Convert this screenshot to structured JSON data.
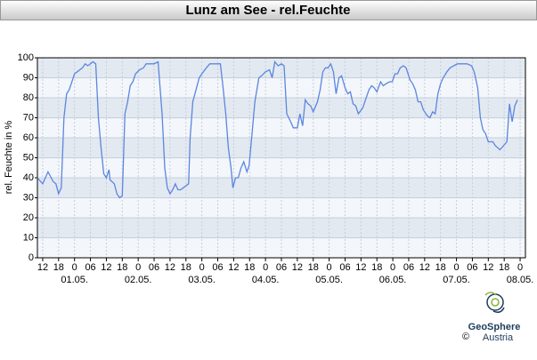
{
  "chart_data": {
    "type": "line",
    "title": "Lunz am See - rel.Feuchte",
    "y_label": "rel. Feuchte in %",
    "logo": {
      "name": "GeoSphere",
      "sub": "Austria",
      "copyright": "©"
    },
    "color": "#5b86e0",
    "grid": true,
    "xlim": [
      -14,
      170
    ],
    "ylim": [
      0,
      100
    ],
    "yticks": [
      0,
      10,
      20,
      30,
      40,
      50,
      60,
      70,
      80,
      90,
      100
    ],
    "xticks": [
      {
        "value": -12,
        "label": "12"
      },
      {
        "value": -6,
        "label": "18"
      },
      {
        "value": 0,
        "label": "0"
      },
      {
        "value": 6,
        "label": "06"
      },
      {
        "value": 12,
        "label": "12"
      },
      {
        "value": 18,
        "label": "18"
      },
      {
        "value": 24,
        "label": "0"
      },
      {
        "value": 30,
        "label": "06"
      },
      {
        "value": 36,
        "label": "12"
      },
      {
        "value": 42,
        "label": "18"
      },
      {
        "value": 48,
        "label": "0"
      },
      {
        "value": 54,
        "label": "06"
      },
      {
        "value": 60,
        "label": "12"
      },
      {
        "value": 66,
        "label": "18"
      },
      {
        "value": 72,
        "label": "0"
      },
      {
        "value": 78,
        "label": "06"
      },
      {
        "value": 84,
        "label": "12"
      },
      {
        "value": 90,
        "label": "18"
      },
      {
        "value": 96,
        "label": "0"
      },
      {
        "value": 102,
        "label": "06"
      },
      {
        "value": 108,
        "label": "12"
      },
      {
        "value": 114,
        "label": "18"
      },
      {
        "value": 120,
        "label": "0"
      },
      {
        "value": 126,
        "label": "06"
      },
      {
        "value": 132,
        "label": "12"
      },
      {
        "value": 138,
        "label": "18"
      },
      {
        "value": 144,
        "label": "0"
      },
      {
        "value": 150,
        "label": "06"
      },
      {
        "value": 156,
        "label": "12"
      },
      {
        "value": 162,
        "label": "18"
      },
      {
        "value": 168,
        "label": "0"
      }
    ],
    "date_ticks": [
      {
        "value": 0,
        "label": "01.05."
      },
      {
        "value": 24,
        "label": "02.05."
      },
      {
        "value": 48,
        "label": "03.05."
      },
      {
        "value": 72,
        "label": "04.05."
      },
      {
        "value": 96,
        "label": "05.05."
      },
      {
        "value": 120,
        "label": "06.05."
      },
      {
        "value": 144,
        "label": "07.05."
      },
      {
        "value": 168,
        "label": "08.05."
      }
    ],
    "x": [
      -14,
      -12,
      -10,
      -8,
      -7,
      -6,
      -5,
      -4,
      -3,
      -2,
      -1,
      0,
      1,
      3,
      4,
      5,
      7,
      8,
      9,
      10,
      11,
      12,
      13,
      13.4,
      15,
      16,
      17,
      18,
      19,
      20,
      21,
      22,
      23,
      24.5,
      26,
      27,
      29,
      30,
      31.5,
      33,
      34,
      35,
      36,
      37,
      38,
      39,
      40,
      41,
      43,
      43.6,
      44.6,
      46,
      47,
      48,
      49.7,
      51,
      53.7,
      55,
      56,
      57,
      58,
      59,
      59.7,
      60.7,
      61.7,
      62.8,
      63.8,
      65,
      65.8,
      66.8,
      68,
      69.5,
      70.5,
      72,
      73.5,
      74.5,
      75.5,
      76.8,
      78,
      79,
      80,
      81.5,
      82.5,
      84,
      85,
      86,
      87,
      88,
      89,
      90,
      91.6,
      92.6,
      93.6,
      94.6,
      95.6,
      96.6,
      97.6,
      98.6,
      99.7,
      100.7,
      102,
      103,
      104,
      105,
      106,
      107,
      108.7,
      109.7,
      111,
      112,
      113,
      114,
      115.4,
      116.4,
      117.4,
      118.8,
      119.8,
      120.8,
      121.8,
      122.8,
      124,
      125,
      126.5,
      127.5,
      128.5,
      129.5,
      130.5,
      131.5,
      133,
      134,
      135,
      136,
      137,
      138,
      139,
      140.4,
      141.6,
      143,
      144.3,
      148,
      149.7,
      150.7,
      152,
      153,
      154,
      155,
      156,
      157.7,
      158.7,
      160.4,
      161.7,
      163,
      164,
      165,
      166,
      167
    ],
    "values": [
      40,
      37,
      43,
      38,
      37,
      32,
      35,
      70,
      82,
      84,
      88,
      92,
      93,
      95,
      97,
      96,
      98,
      97,
      70,
      55,
      42,
      40,
      44,
      39,
      37,
      32,
      30,
      31,
      72,
      78,
      86,
      88,
      92,
      94,
      95,
      97,
      97,
      97,
      98,
      72,
      45,
      35,
      32,
      34,
      37,
      34,
      34,
      35,
      37,
      60,
      78,
      85,
      90,
      92,
      95,
      97,
      97,
      97,
      85,
      72,
      55,
      45,
      35,
      40,
      40,
      45,
      48,
      43,
      46,
      60,
      78,
      90,
      91,
      93,
      94,
      90,
      98,
      96,
      97,
      96,
      72,
      68,
      65,
      65,
      72,
      66,
      79,
      77,
      76,
      73,
      78,
      84,
      93,
      95,
      95,
      97,
      93,
      82,
      90,
      91,
      85,
      82,
      83,
      77,
      76,
      72,
      75,
      79,
      84,
      86,
      85,
      83,
      88,
      86,
      87,
      88,
      88,
      92,
      92,
      95,
      96,
      95,
      89,
      87,
      84,
      78,
      78,
      74,
      71,
      70,
      73,
      72,
      82,
      87,
      90,
      93,
      95,
      96,
      97,
      97,
      96,
      93,
      85,
      70,
      64,
      62,
      58,
      58,
      56,
      54,
      56,
      58,
      77,
      68,
      76,
      79
    ]
  }
}
